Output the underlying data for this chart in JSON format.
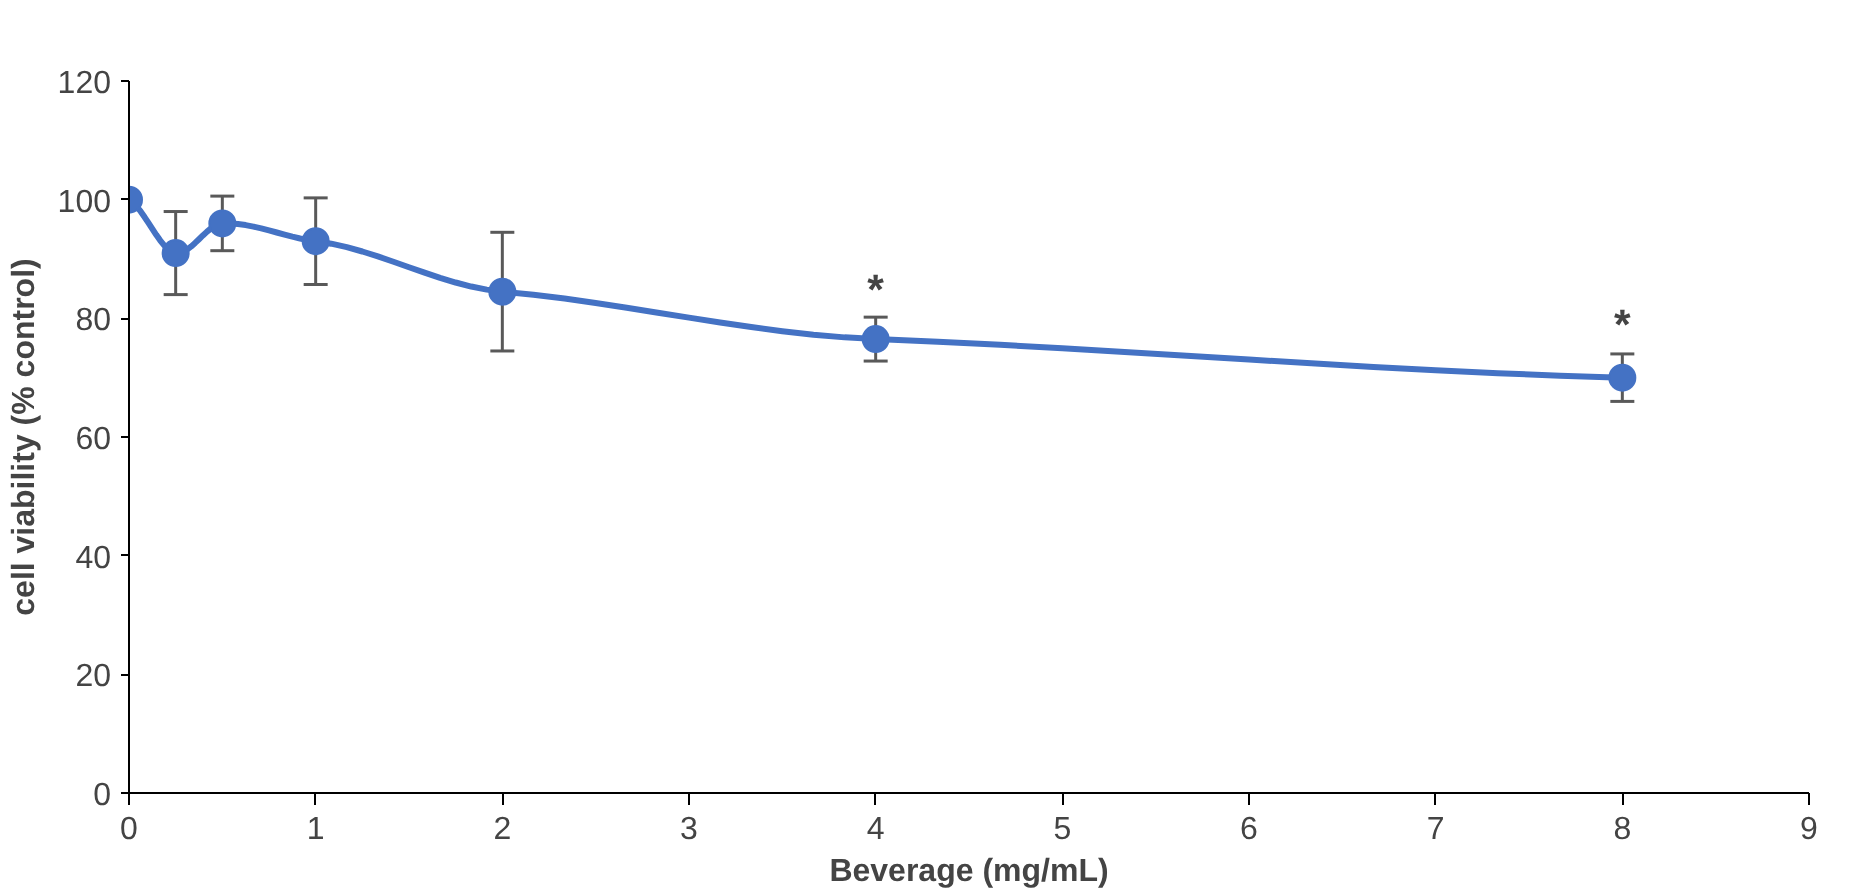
{
  "chart_data": {
    "type": "line",
    "xlabel": "Beverage (mg/mL)",
    "ylabel": "cell viability (% control)",
    "x": [
      0,
      0.25,
      0.5,
      1,
      2,
      4,
      8
    ],
    "series": [
      {
        "color": "#4472c4",
        "values": [
          100,
          91,
          96,
          93,
          84.5,
          76.5,
          70
        ],
        "errors": [
          null,
          7,
          4.6,
          7.3,
          10,
          3.7,
          4
        ]
      }
    ],
    "xlim": [
      0,
      9
    ],
    "xticks": [
      0,
      1,
      2,
      3,
      4,
      5,
      6,
      7,
      8,
      9
    ],
    "ylim": [
      0,
      120
    ],
    "yticks": [
      0,
      20,
      40,
      60,
      80,
      100,
      120
    ],
    "grid": false,
    "marker": "circle",
    "line_style": "solid",
    "annotations": [
      {
        "text": "*",
        "x": 4,
        "y": 80.1
      },
      {
        "text": "*",
        "x": 8,
        "y": 74.2
      }
    ]
  }
}
